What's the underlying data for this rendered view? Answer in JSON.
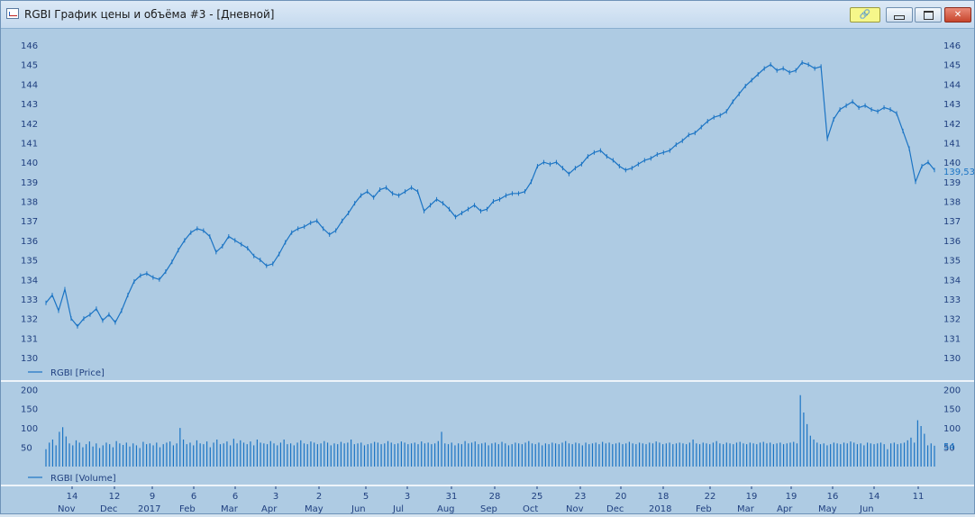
{
  "window": {
    "title": "RGBI График цены и объёма #3 - [Дневной]",
    "buttons": {
      "link_icon": "link-icon",
      "minimize_icon": "minimize-icon",
      "maximize_icon": "maximize-icon",
      "close_icon": "close-icon"
    }
  },
  "colors": {
    "series": "#1b74c4",
    "axis_text": "#1f3f7f",
    "background": "#aecbe3"
  },
  "chart_data": [
    {
      "type": "line",
      "legend": "RGBI [Price]",
      "y_ticks": [
        "146",
        "145",
        "144",
        "143",
        "142",
        "141",
        "140",
        "139",
        "138",
        "137",
        "136",
        "135",
        "134",
        "133",
        "132",
        "131",
        "130"
      ],
      "ylim": [
        130,
        146
      ],
      "last_value": "139,53",
      "series": [
        {
          "name": "RGBI [Price]",
          "values": [
            132.8,
            133.2,
            132.4,
            133.5,
            132.0,
            131.6,
            132.0,
            132.2,
            132.5,
            131.9,
            132.2,
            131.8,
            132.4,
            133.2,
            133.9,
            134.2,
            134.3,
            134.1,
            134.0,
            134.4,
            134.9,
            135.5,
            136.0,
            136.4,
            136.6,
            136.5,
            136.2,
            135.4,
            135.7,
            136.2,
            136.0,
            135.8,
            135.6,
            135.2,
            135.0,
            134.7,
            134.8,
            135.3,
            135.9,
            136.4,
            136.6,
            136.7,
            136.9,
            137.0,
            136.6,
            136.3,
            136.5,
            137.0,
            137.4,
            137.9,
            138.3,
            138.5,
            138.2,
            138.6,
            138.7,
            138.4,
            138.3,
            138.5,
            138.7,
            138.5,
            137.5,
            137.8,
            138.1,
            137.9,
            137.6,
            137.2,
            137.4,
            137.6,
            137.8,
            137.5,
            137.6,
            138.0,
            138.1,
            138.3,
            138.4,
            138.4,
            138.5,
            139.0,
            139.8,
            140.0,
            139.9,
            140.0,
            139.7,
            139.4,
            139.7,
            139.9,
            140.3,
            140.5,
            140.6,
            140.3,
            140.1,
            139.8,
            139.6,
            139.7,
            139.9,
            140.1,
            140.2,
            140.4,
            140.5,
            140.6,
            140.9,
            141.1,
            141.4,
            141.5,
            141.8,
            142.1,
            142.3,
            142.4,
            142.6,
            143.1,
            143.5,
            143.9,
            144.2,
            144.5,
            144.8,
            145.0,
            144.7,
            144.8,
            144.6,
            144.7,
            145.1,
            145.0,
            144.8,
            144.9,
            141.2,
            142.2,
            142.7,
            142.9,
            143.1,
            142.8,
            142.9,
            142.7,
            142.6,
            142.8,
            142.7,
            142.5,
            141.6,
            140.7,
            139.0,
            139.8,
            140.0,
            139.6
          ]
        }
      ]
    },
    {
      "type": "bar",
      "legend": "RGBI [Volume]",
      "y_ticks": [
        "200",
        "150",
        "100",
        "50"
      ],
      "ylim": [
        0,
        210
      ],
      "last_value": "54",
      "series": [
        {
          "name": "RGBI [Volume]",
          "values": [
            45,
            62,
            70,
            55,
            90,
            102,
            78,
            60,
            55,
            68,
            62,
            50,
            58,
            65,
            52,
            60,
            48,
            55,
            62,
            58,
            50,
            66,
            60,
            56,
            62,
            52,
            60,
            55,
            48,
            64,
            58,
            60,
            55,
            62,
            50,
            58,
            62,
            65,
            55,
            60,
            100,
            70,
            58,
            62,
            55,
            68,
            60,
            58,
            65,
            50,
            62,
            70,
            58,
            60,
            65,
            55,
            72,
            60,
            68,
            62,
            58,
            65,
            55,
            70,
            62,
            60,
            58,
            66,
            60,
            55,
            62,
            70,
            58,
            60,
            55,
            62,
            68,
            60,
            58,
            65,
            62,
            58,
            60,
            66,
            62,
            55,
            60,
            58,
            64,
            60,
            62,
            70,
            58,
            60,
            62,
            55,
            58,
            60,
            64,
            62,
            58,
            60,
            66,
            62,
            58,
            60,
            65,
            62,
            58,
            60,
            62,
            58,
            65,
            60,
            62,
            58,
            60,
            66,
            90,
            60,
            58,
            62,
            55,
            60,
            58,
            66,
            60,
            62,
            65,
            58,
            60,
            62,
            55,
            60,
            62,
            58,
            64,
            60,
            55,
            58,
            62,
            60,
            58,
            62,
            66,
            60,
            58,
            62,
            55,
            60,
            58,
            62,
            60,
            58,
            62,
            66,
            60,
            58,
            62,
            60,
            55,
            62,
            58,
            60,
            62,
            58,
            64,
            60,
            62,
            58,
            60,
            62,
            58,
            60,
            64,
            60,
            58,
            62,
            60,
            58,
            62,
            60,
            65,
            62,
            58,
            60,
            62,
            58,
            60,
            62,
            60,
            58,
            62,
            70,
            60,
            58,
            62,
            60,
            58,
            62,
            66,
            60,
            58,
            62,
            60,
            58,
            62,
            64,
            60,
            58,
            62,
            60,
            58,
            62,
            64,
            60,
            62,
            58,
            60,
            62,
            58,
            60,
            62,
            64,
            60,
            185,
            140,
            110,
            80,
            70,
            62,
            58,
            60,
            55,
            58,
            62,
            60,
            58,
            62,
            60,
            65,
            62,
            58,
            60,
            55,
            62,
            60,
            58,
            60,
            62,
            58,
            45,
            60,
            62,
            58,
            60,
            62,
            68,
            75,
            62,
            120,
            105,
            85,
            55,
            60,
            54
          ]
        }
      ]
    }
  ],
  "x_axis": [
    {
      "day": "14",
      "month": "Nov"
    },
    {
      "day": "12",
      "month": "Dec"
    },
    {
      "day": "9",
      "month": "2017"
    },
    {
      "day": "6",
      "month": "Feb"
    },
    {
      "day": "6",
      "month": "Mar"
    },
    {
      "day": "3",
      "month": "Apr"
    },
    {
      "day": "2",
      "month": "May"
    },
    {
      "day": "5",
      "month": "Jun"
    },
    {
      "day": "3",
      "month": "Jul"
    },
    {
      "day": "31",
      "month": "Aug"
    },
    {
      "day": "28",
      "month": "Sep"
    },
    {
      "day": "25",
      "month": "Oct"
    },
    {
      "day": "23",
      "month": "Nov"
    },
    {
      "day": "20",
      "month": "Dec"
    },
    {
      "day": "18",
      "month": "2018"
    },
    {
      "day": "22",
      "month": "Feb"
    },
    {
      "day": "19",
      "month": "Mar"
    },
    {
      "day": "19",
      "month": "Apr"
    },
    {
      "day": "16",
      "month": "May"
    },
    {
      "day": "14",
      "month": "Jun"
    },
    {
      "day": "11",
      "month": ""
    }
  ]
}
